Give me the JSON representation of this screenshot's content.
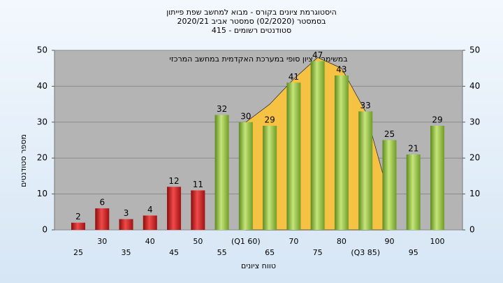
{
  "chart_data": {
    "type": "bar",
    "title": "היסטוגרמת ציונים בקורס - מבוא למחשב שפת פייתון",
    "subtitle": "בסמסטר  (02/2020)  סמסטר אביב 2020/21",
    "subtitle2": "סטודנטים רשומים - 415",
    "annotation": "במשימה - ציון סופי במערכת האקדמית במחשב המרכזי",
    "xlabel": "טווח ציונים",
    "ylabel": "מספר סטודנטים",
    "categories": [
      "25",
      "30",
      "35",
      "40",
      "45",
      "50",
      "55",
      "(Q1 60)",
      "65",
      "70",
      "75",
      "80",
      "(Q3 85)",
      "90",
      "95",
      "100"
    ],
    "series": [
      {
        "color": "#f6c243",
        "type": "area",
        "values": [
          null,
          null,
          null,
          null,
          null,
          null,
          null,
          30,
          35,
          42,
          48,
          45,
          33,
          9,
          null,
          null
        ]
      },
      {
        "colors": [
          "#d62020",
          "#d62020",
          "#d62020",
          "#d62020",
          "#d62020",
          "#d62020",
          "#8fc43c",
          "#8fc43c",
          "#8fc43c",
          "#8fc43c",
          "#8fc43c",
          "#8fc43c",
          "#8fc43c",
          "#8fc43c",
          "#8fc43c",
          "#8fc43c"
        ],
        "values": [
          2,
          6,
          3,
          4,
          12,
          11,
          32,
          30,
          29,
          41,
          47,
          43,
          33,
          25,
          21,
          29
        ]
      }
    ],
    "ylim": [
      0,
      50
    ],
    "yticks": [
      0,
      10,
      20,
      30,
      40,
      50
    ],
    "y2lim": [
      0,
      50
    ],
    "y2ticks": [
      0,
      10,
      20,
      30,
      40,
      50
    ],
    "grid": true
  }
}
